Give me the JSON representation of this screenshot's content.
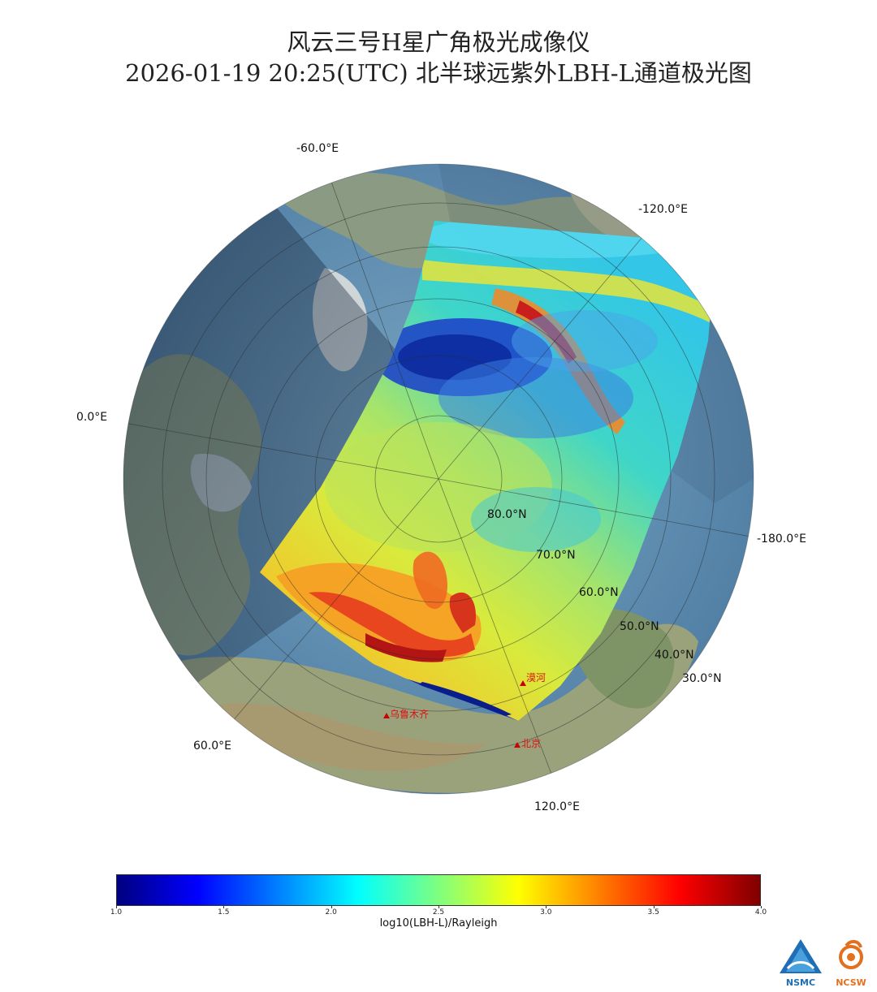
{
  "title": {
    "line1": "风云三号H星广角极光成像仪",
    "line2": "2026-01-19 20:25(UTC) 北半球远紫外LBH-L通道极光图"
  },
  "map": {
    "projection": "north-polar-orthographic",
    "longitude_labels": [
      "-60.0°E",
      "-120.0°E",
      "0.0°E",
      "-180.0°E",
      "60.0°E",
      "120.0°E"
    ],
    "latitude_labels": [
      "80.0°N",
      "70.0°N",
      "60.0°N",
      "50.0°N",
      "40.0°N",
      "30.0°N"
    ],
    "cities": [
      {
        "name": "漠河"
      },
      {
        "name": "乌鲁木齐"
      },
      {
        "name": "北京"
      }
    ]
  },
  "colorbar": {
    "label": "log10(LBH-L)/Rayleigh",
    "min": 1.0,
    "max": 4.0,
    "ticks": [
      "1.0",
      "1.5",
      "2.0",
      "2.5",
      "3.0",
      "3.5",
      "4.0"
    ],
    "colors": [
      "#00007f",
      "#0000ff",
      "#007fff",
      "#00ffff",
      "#7fff7f",
      "#ffff00",
      "#ff7f00",
      "#ff0000",
      "#7f0000"
    ]
  },
  "logos": {
    "left": "NSMC",
    "right": "NCSW"
  }
}
